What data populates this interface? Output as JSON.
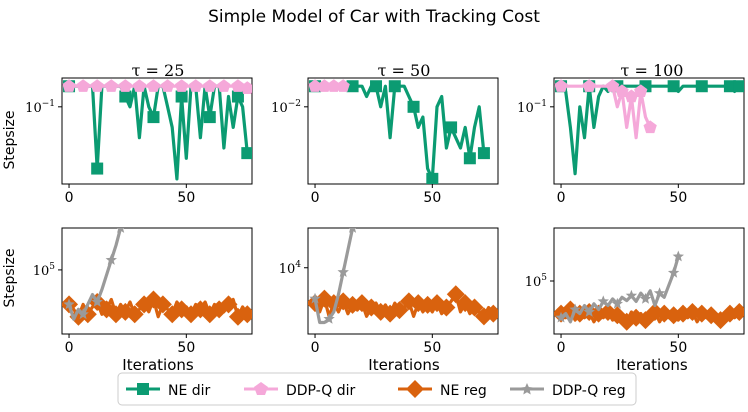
{
  "title": "Simple Model of Car with Tracking Cost",
  "colors": {
    "ne_dir": "#0b9b72",
    "ddpq_dir": "#f5a8d9",
    "ne_reg": "#d9620e",
    "ddpq_reg": "#9a9a9a"
  },
  "legend": {
    "items": [
      {
        "label": "NE dir",
        "color": "#0b9b72",
        "marker": "square"
      },
      {
        "label": "DDP-Q dir",
        "color": "#f5a8d9",
        "marker": "pentagon"
      },
      {
        "label": "NE reg",
        "color": "#d9620e",
        "marker": "diamond"
      },
      {
        "label": "DDP-Q reg",
        "color": "#9a9a9a",
        "marker": "star"
      }
    ]
  },
  "chart_data": [
    {
      "type": "line",
      "row": "direction",
      "panel_title": "τ = 25",
      "ylabel": "Stepsize",
      "xlabel": "",
      "yscale": "log",
      "xlim": [
        -3,
        78
      ],
      "ylim_log10": [
        -1.75,
        -0.72
      ],
      "xticks": [
        0,
        50
      ],
      "ytick_label": "10^{-1}",
      "ytick_value_log10": -1,
      "series": [
        {
          "name": "NE dir",
          "x": [
            0,
            2,
            4,
            6,
            8,
            10,
            12,
            14,
            16,
            18,
            20,
            22,
            24,
            26,
            28,
            30,
            32,
            34,
            36,
            38,
            40,
            42,
            44,
            46,
            48,
            50,
            52,
            54,
            56,
            58,
            60,
            62,
            64,
            66,
            68,
            70,
            72,
            74,
            76
          ],
          "y": [
            -0.8,
            -0.8,
            -0.8,
            -0.8,
            -0.8,
            -0.8,
            -1.6,
            -0.8,
            -0.8,
            -0.8,
            -0.8,
            -0.8,
            -0.9,
            -1.0,
            -0.8,
            -1.3,
            -0.8,
            -1.0,
            -1.1,
            -0.8,
            -0.8,
            -1.0,
            -1.2,
            -1.7,
            -0.9,
            -1.5,
            -0.8,
            -0.8,
            -1.3,
            -0.8,
            -1.1,
            -0.8,
            -0.8,
            -1.4,
            -0.9,
            -1.2,
            -0.9,
            -1.0,
            -1.45
          ],
          "marker_every": 6
        },
        {
          "name": "DDP-Q dir",
          "x": [
            0,
            6,
            12,
            18,
            24,
            30,
            36,
            42,
            48,
            54,
            60,
            66,
            72,
            76
          ],
          "y": [
            -0.8,
            -0.8,
            -0.8,
            -0.8,
            -0.8,
            -0.8,
            -0.8,
            -0.8,
            -0.8,
            -0.8,
            -0.8,
            -0.8,
            -0.8,
            -0.82
          ],
          "marker_every": 1
        }
      ]
    },
    {
      "type": "line",
      "row": "direction",
      "panel_title": "τ = 50",
      "ylabel": "",
      "xlabel": "",
      "yscale": "log",
      "xlim": [
        -3,
        78
      ],
      "ylim_log10": [
        -2.75,
        -1.72
      ],
      "xticks": [
        0,
        50
      ],
      "ytick_label": "10^{-2}",
      "ytick_value_log10": -2,
      "series": [
        {
          "name": "NE dir",
          "x": [
            0,
            4,
            8,
            12,
            16,
            20,
            22,
            24,
            26,
            28,
            30,
            32,
            34,
            36,
            38,
            40,
            42,
            44,
            46,
            48,
            50,
            52,
            54,
            56,
            58,
            60,
            62,
            64,
            66,
            68,
            70,
            72
          ],
          "y": [
            -1.8,
            -1.8,
            -1.8,
            -1.8,
            -1.8,
            -1.8,
            -1.9,
            -1.8,
            -1.8,
            -2.0,
            -1.8,
            -2.3,
            -1.8,
            -1.8,
            -1.8,
            -1.9,
            -2.0,
            -2.2,
            -2.1,
            -2.6,
            -2.7,
            -2.0,
            -1.9,
            -2.4,
            -2.2,
            -2.3,
            -2.4,
            -2.2,
            -2.5,
            -2.2,
            -2.0,
            -2.45
          ],
          "marker_every": 4
        },
        {
          "name": "DDP-Q dir",
          "x": [
            0,
            4,
            8,
            12
          ],
          "y": [
            -1.8,
            -1.8,
            -1.8,
            -1.8
          ],
          "marker_every": 1
        }
      ]
    },
    {
      "type": "line",
      "row": "direction",
      "panel_title": "τ = 100",
      "ylabel": "",
      "xlabel": "",
      "yscale": "log",
      "xlim": [
        -3,
        78
      ],
      "ylim_log10": [
        -1.75,
        -0.72
      ],
      "xticks": [
        0,
        50
      ],
      "ytick_label": "10^{-1}",
      "ytick_value_log10": -1,
      "series": [
        {
          "name": "NE dir",
          "x": [
            0,
            2,
            4,
            6,
            8,
            10,
            12,
            14,
            16,
            18,
            20,
            22,
            24,
            26,
            28,
            30,
            32,
            34,
            36,
            38,
            40,
            42,
            44,
            46,
            48,
            50,
            52,
            54,
            56,
            58,
            60,
            62,
            64,
            66,
            68,
            70,
            72,
            74,
            76
          ],
          "y": [
            -0.8,
            -0.85,
            -1.2,
            -1.65,
            -1.0,
            -1.3,
            -0.8,
            -1.2,
            -0.9,
            -0.8,
            -0.85,
            -0.8,
            -0.8,
            -0.8,
            -0.8,
            -0.8,
            -0.8,
            -0.8,
            -0.8,
            -0.8,
            -0.8,
            -0.8,
            -0.8,
            -0.8,
            -0.8,
            -0.85,
            -0.8,
            -0.8,
            -0.8,
            -0.8,
            -0.8,
            -0.8,
            -0.8,
            -0.8,
            -0.8,
            -0.8,
            -0.8,
            -0.85,
            -0.8
          ],
          "marker_every": 6
        },
        {
          "name": "DDP-Q dir",
          "x": [
            0,
            6,
            12,
            18,
            22,
            24,
            26,
            28,
            30,
            32,
            34,
            36,
            38
          ],
          "y": [
            -0.8,
            -0.8,
            -0.8,
            -0.8,
            -0.8,
            -1.0,
            -0.85,
            -1.2,
            -0.9,
            -1.3,
            -0.85,
            -1.1,
            -1.2
          ],
          "marker_every": 2
        }
      ]
    },
    {
      "type": "line",
      "row": "regularization",
      "panel_title": "",
      "ylabel": "Stepsize",
      "xlabel": "Iterations",
      "yscale": "log",
      "xlim": [
        -3,
        78
      ],
      "ylim_log10": [
        3.7,
        5.85
      ],
      "xticks": [
        0,
        50
      ],
      "ytick_label": "10^{5}",
      "ytick_value_log10": 5,
      "series": [
        {
          "name": "NE reg",
          "x": [
            0,
            2,
            4,
            6,
            8,
            10,
            12,
            14,
            16,
            18,
            20,
            22,
            24,
            26,
            28,
            30,
            32,
            34,
            36,
            38,
            40,
            42,
            44,
            46,
            48,
            50,
            52,
            54,
            56,
            58,
            60,
            62,
            64,
            66,
            68,
            70,
            72,
            74,
            76
          ],
          "y": [
            4.3,
            4.2,
            4.05,
            4.3,
            4.1,
            4.25,
            4.35,
            4.1,
            4.2,
            4.4,
            4.1,
            4.3,
            4.15,
            4.35,
            4.1,
            4.2,
            4.3,
            4.15,
            4.4,
            4.05,
            4.3,
            4.2,
            4.1,
            4.35,
            4.2,
            4.25,
            4.1,
            4.3,
            4.2,
            4.35,
            4.1,
            4.3,
            4.2,
            4.15,
            4.3,
            4.4,
            4.05,
            4.25,
            4.1
          ],
          "marker_every": 2
        },
        {
          "name": "DDP-Q reg",
          "x": [
            0,
            2,
            4,
            6,
            8,
            10,
            12,
            14,
            16,
            18,
            20,
            22
          ],
          "y": [
            4.3,
            4.0,
            4.2,
            4.1,
            4.3,
            4.5,
            4.35,
            4.6,
            4.9,
            5.2,
            5.5,
            5.85
          ],
          "marker_every": 3
        }
      ]
    },
    {
      "type": "line",
      "row": "regularization",
      "panel_title": "",
      "ylabel": "",
      "xlabel": "Iterations",
      "yscale": "log",
      "xlim": [
        -3,
        78
      ],
      "ylim_log10": [
        3.25,
        4.45
      ],
      "xticks": [
        0,
        50
      ],
      "ytick_label": "10^{4}",
      "ytick_value_log10": 4,
      "series": [
        {
          "name": "NE reg",
          "x": [
            0,
            2,
            4,
            6,
            8,
            10,
            12,
            14,
            16,
            18,
            20,
            22,
            24,
            26,
            28,
            30,
            32,
            34,
            36,
            38,
            40,
            42,
            44,
            46,
            48,
            50,
            52,
            54,
            56,
            58,
            60,
            62,
            64,
            66,
            68,
            70,
            72,
            74,
            76
          ],
          "y": [
            3.6,
            3.5,
            3.65,
            3.45,
            3.6,
            3.5,
            3.62,
            3.48,
            3.58,
            3.52,
            3.6,
            3.45,
            3.55,
            3.6,
            3.5,
            3.58,
            3.48,
            3.6,
            3.52,
            3.55,
            3.62,
            3.45,
            3.6,
            3.5,
            3.58,
            3.5,
            3.6,
            3.48,
            3.55,
            3.62,
            3.7,
            3.5,
            3.6,
            3.48,
            3.55,
            3.5,
            3.45,
            3.55,
            3.48
          ],
          "marker_every": 2
        },
        {
          "name": "DDP-Q reg",
          "x": [
            0,
            2,
            4,
            6,
            8,
            10,
            12,
            14,
            16
          ],
          "y": [
            3.65,
            3.38,
            3.38,
            3.42,
            3.5,
            3.7,
            3.95,
            4.2,
            4.45
          ],
          "marker_every": 3
        }
      ]
    },
    {
      "type": "line",
      "row": "regularization",
      "panel_title": "",
      "ylabel": "",
      "xlabel": "Iterations",
      "yscale": "log",
      "xlim": [
        -3,
        78
      ],
      "ylim_log10": [
        4.35,
        5.65
      ],
      "xticks": [
        0,
        50
      ],
      "ytick_label": "10^{5}",
      "ytick_value_log10": 5,
      "series": [
        {
          "name": "NE reg",
          "x": [
            0,
            2,
            4,
            6,
            8,
            10,
            12,
            14,
            16,
            18,
            20,
            22,
            24,
            26,
            28,
            30,
            32,
            34,
            36,
            38,
            40,
            42,
            44,
            46,
            48,
            50,
            52,
            54,
            56,
            58,
            60,
            62,
            64,
            66,
            68,
            70,
            72,
            74,
            76
          ],
          "y": [
            4.6,
            4.55,
            4.65,
            4.52,
            4.6,
            4.55,
            4.62,
            4.5,
            4.6,
            4.55,
            4.62,
            4.52,
            4.58,
            4.6,
            4.5,
            4.62,
            4.55,
            4.6,
            4.52,
            4.58,
            4.62,
            4.5,
            4.6,
            4.55,
            4.58,
            4.52,
            4.6,
            4.55,
            4.62,
            4.5,
            4.6,
            4.55,
            4.58,
            4.6,
            4.52,
            4.55,
            4.6,
            4.55,
            4.62
          ],
          "marker_every": 2
        },
        {
          "name": "DDP-Q reg",
          "x": [
            0,
            2,
            4,
            6,
            8,
            10,
            12,
            14,
            16,
            18,
            20,
            22,
            24,
            26,
            28,
            30,
            32,
            34,
            36,
            38,
            40,
            42,
            44,
            46,
            48,
            50
          ],
          "y": [
            4.55,
            4.6,
            4.5,
            4.65,
            4.6,
            4.7,
            4.62,
            4.72,
            4.65,
            4.75,
            4.7,
            4.78,
            4.72,
            4.8,
            4.76,
            4.82,
            4.75,
            4.85,
            4.78,
            4.88,
            4.7,
            4.85,
            4.8,
            4.95,
            5.1,
            5.3
          ],
          "marker_every": 3
        }
      ]
    }
  ]
}
